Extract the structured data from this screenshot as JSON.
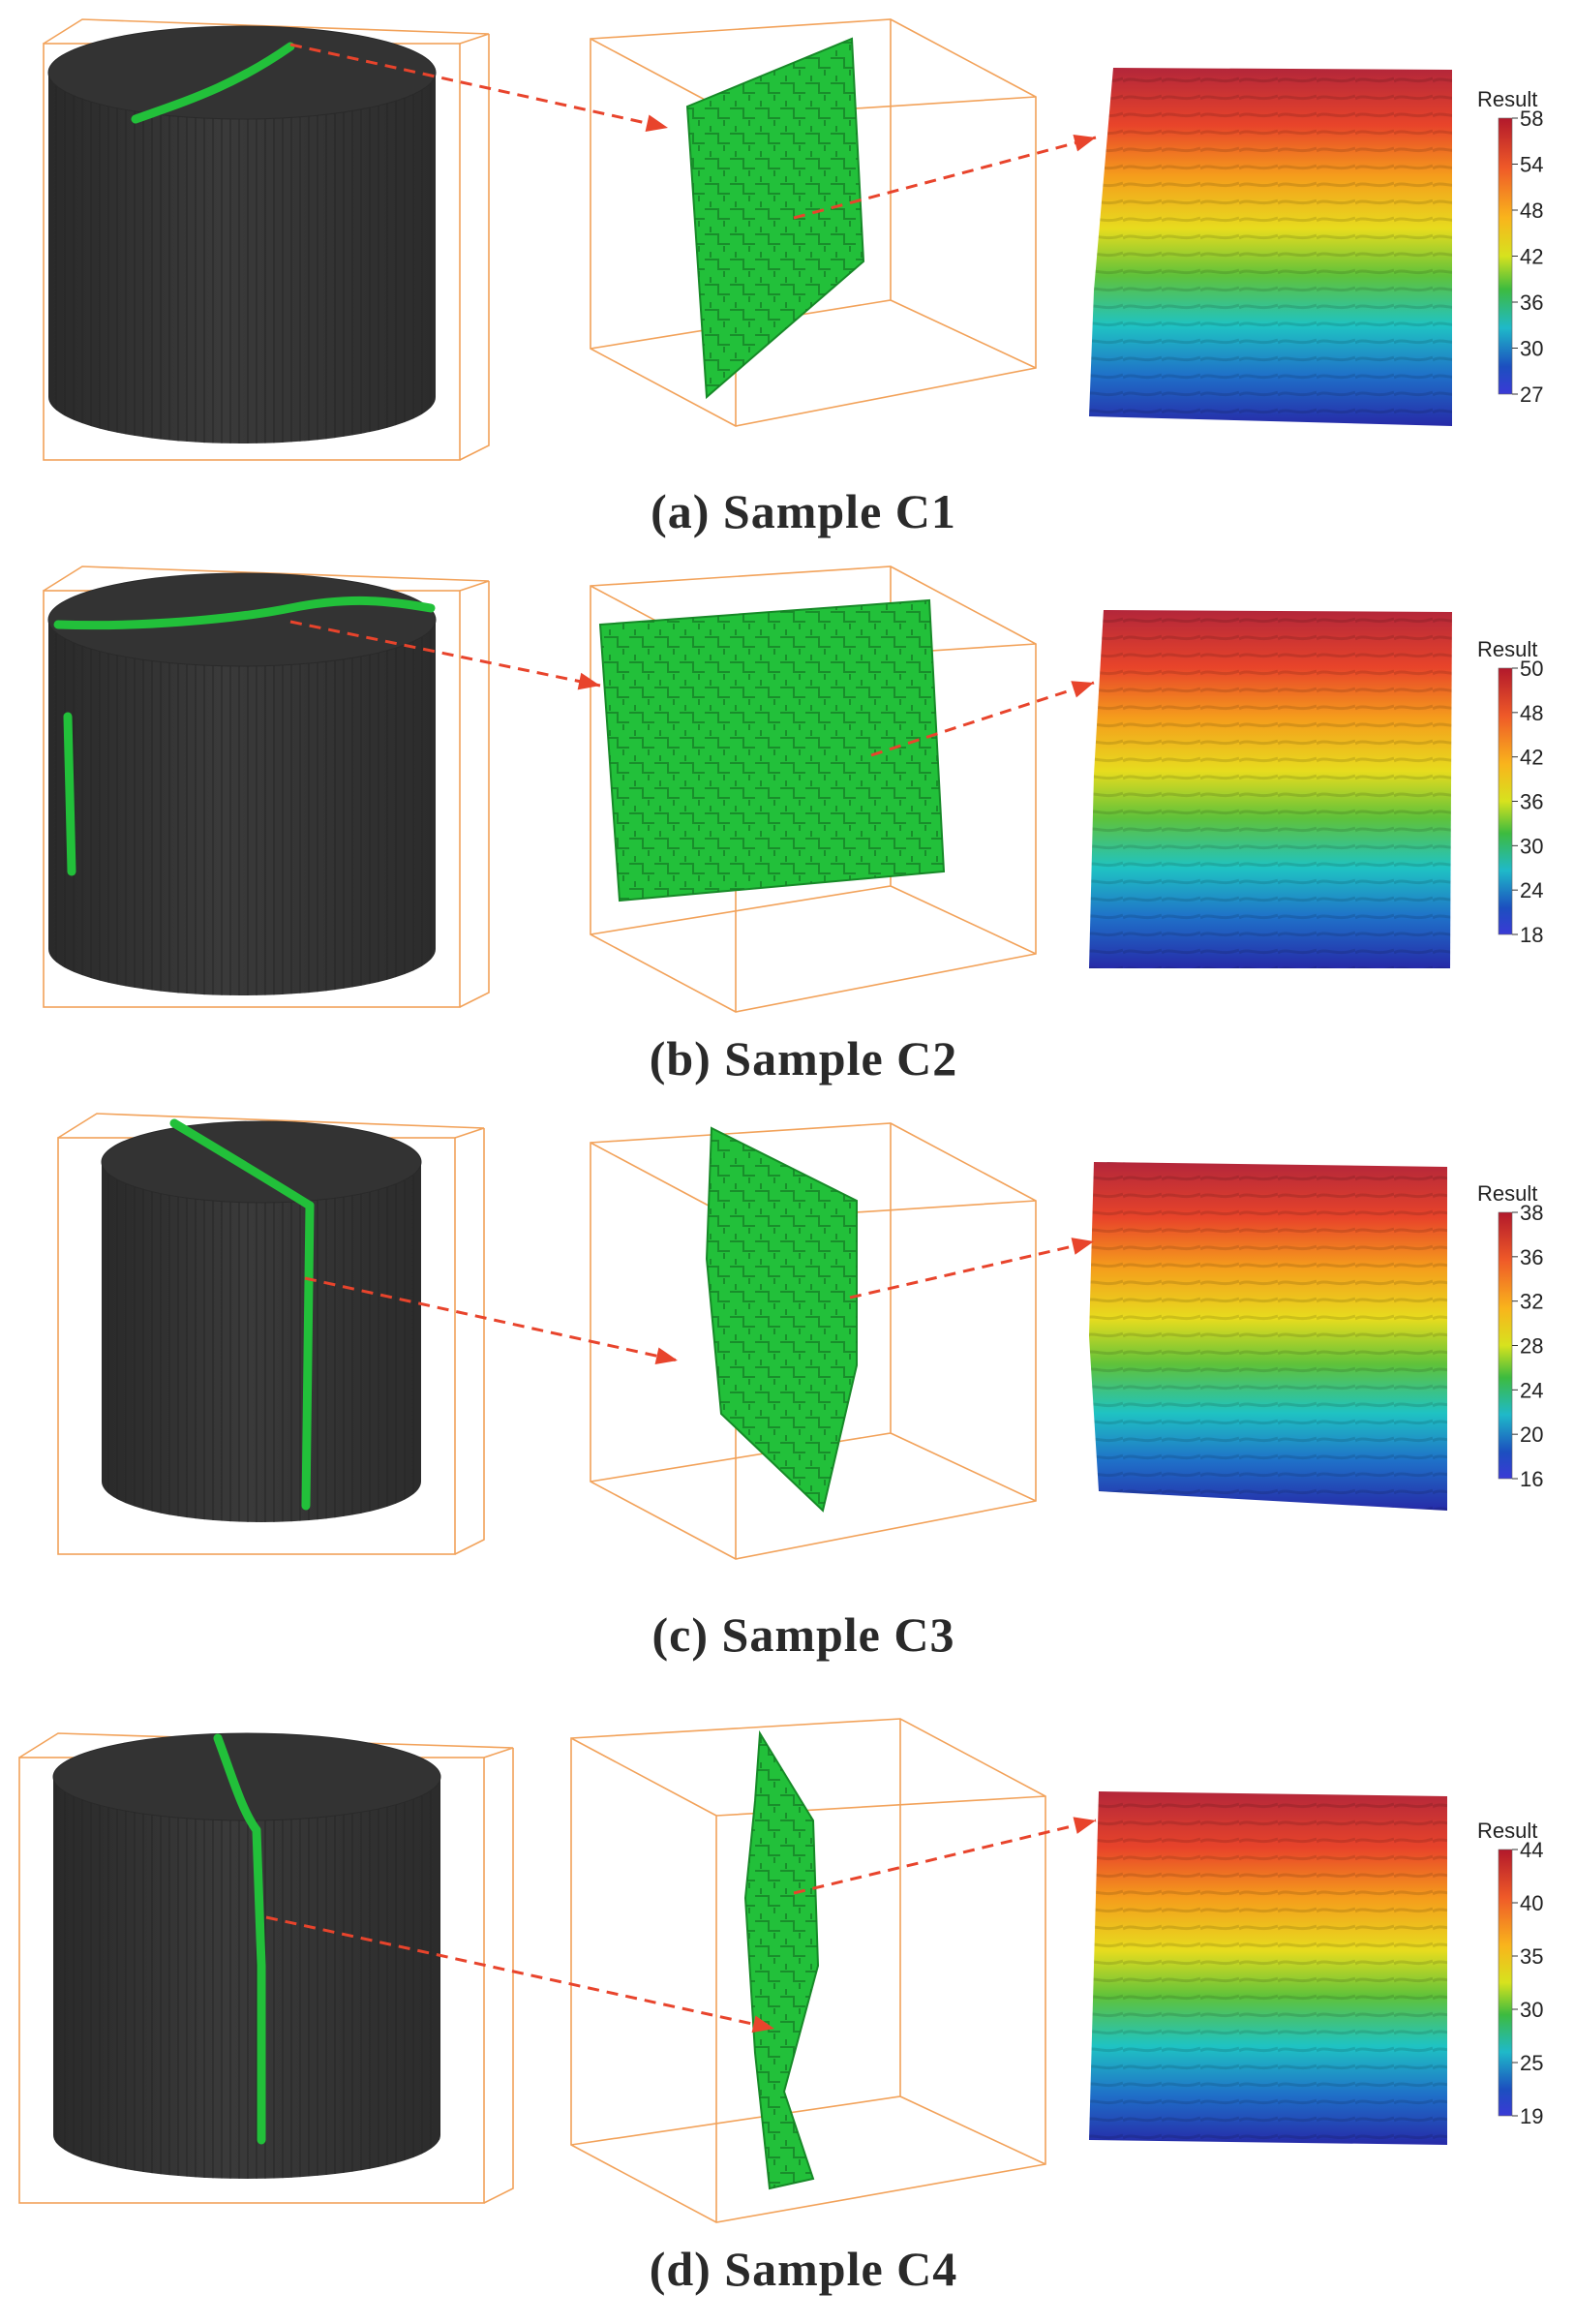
{
  "panels": [
    {
      "caption": "(a) Sample C1",
      "legend": {
        "title": "Result",
        "ticks": [
          "58",
          "54",
          "48",
          "42",
          "36",
          "30",
          "27"
        ]
      }
    },
    {
      "caption": "(b) Sample C2",
      "legend": {
        "title": "Result",
        "ticks": [
          "50",
          "48",
          "42",
          "36",
          "30",
          "24",
          "18"
        ]
      }
    },
    {
      "caption": "(c) Sample C3",
      "legend": {
        "title": "Result",
        "ticks": [
          "38",
          "36",
          "32",
          "28",
          "24",
          "20",
          "16"
        ]
      }
    },
    {
      "caption": "(d) Sample C4",
      "legend": {
        "title": "Result",
        "ticks": [
          "44",
          "40",
          "35",
          "30",
          "25",
          "19"
        ]
      }
    }
  ],
  "colors": {
    "core": "#333333",
    "crack": "#22c03a",
    "box": "#f2a25a",
    "arrow": "#e8442c"
  }
}
